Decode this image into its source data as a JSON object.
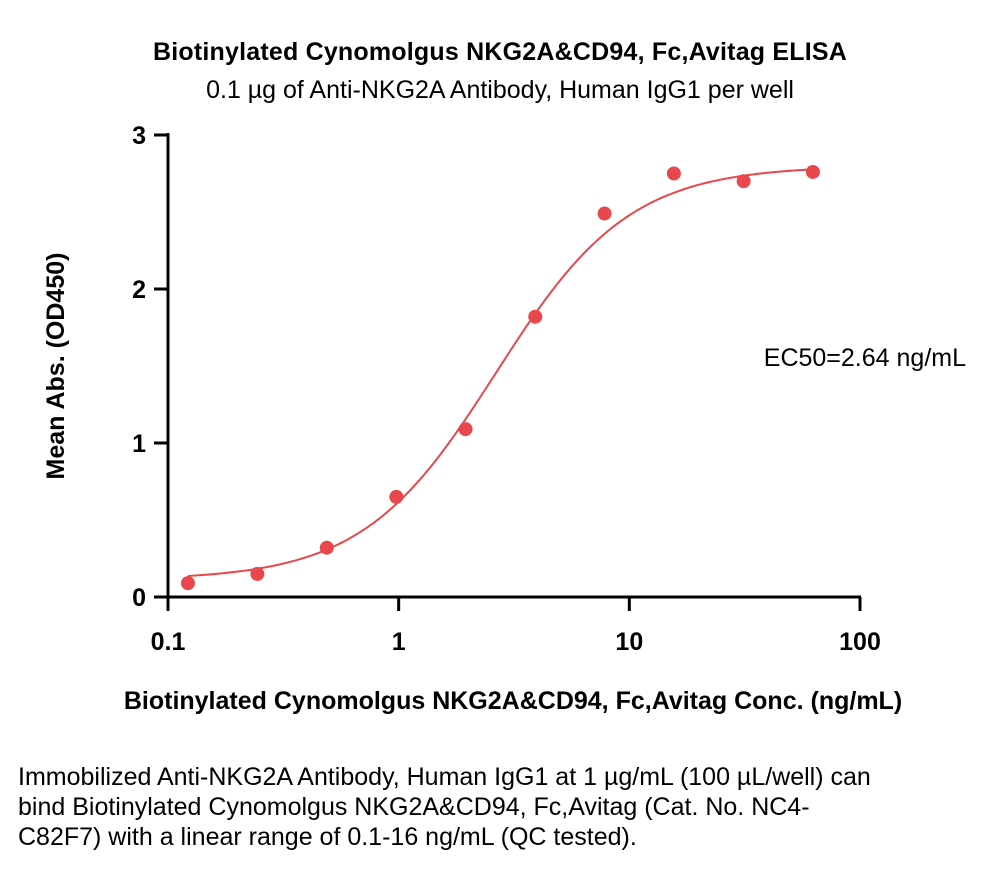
{
  "chart_data": {
    "type": "scatter",
    "title": "Biotinylated Cynomolgus NKG2A&CD94, Fc,Avitag ELISA",
    "subtitle": "0.1 µg of Anti-NKG2A Antibody, Human IgG1 per well",
    "xlabel": "Biotinylated Cynomolgus NKG2A&CD94, Fc,Avitag Conc. (ng/mL)",
    "ylabel": "Mean Abs. (OD450)",
    "x_scale": "log",
    "xlim": [
      0.1,
      100
    ],
    "ylim": [
      0,
      3
    ],
    "x_ticks": [
      "0.1",
      "1",
      "10",
      "100"
    ],
    "y_ticks": [
      "0",
      "1",
      "2",
      "3"
    ],
    "grid": false,
    "series": [
      {
        "points": [
          {
            "x": 0.122,
            "y": 0.09
          },
          {
            "x": 0.244,
            "y": 0.15
          },
          {
            "x": 0.488,
            "y": 0.32
          },
          {
            "x": 0.977,
            "y": 0.65
          },
          {
            "x": 1.95,
            "y": 1.09
          },
          {
            "x": 3.91,
            "y": 1.82
          },
          {
            "x": 7.81,
            "y": 2.49
          },
          {
            "x": 15.6,
            "y": 2.75
          },
          {
            "x": 31.3,
            "y": 2.7
          },
          {
            "x": 62.5,
            "y": 2.76
          }
        ],
        "fit": {
          "model": "4PL",
          "bottom": 0.11,
          "top": 2.8,
          "ec50": 2.64,
          "hill": 1.5
        }
      }
    ],
    "annotation": "EC50=2.64 ng/mL",
    "marker_color": "#E8474C",
    "line_color": "#E8474C"
  },
  "caption": "Immobilized Anti-NKG2A Antibody, Human IgG1 at 1 µg/mL (100 µL/well) can bind Biotinylated Cynomolgus NKG2A&CD94, Fc,Avitag (Cat. No. NC4-C82F7) with a linear range of 0.1-16 ng/mL (QC tested)."
}
